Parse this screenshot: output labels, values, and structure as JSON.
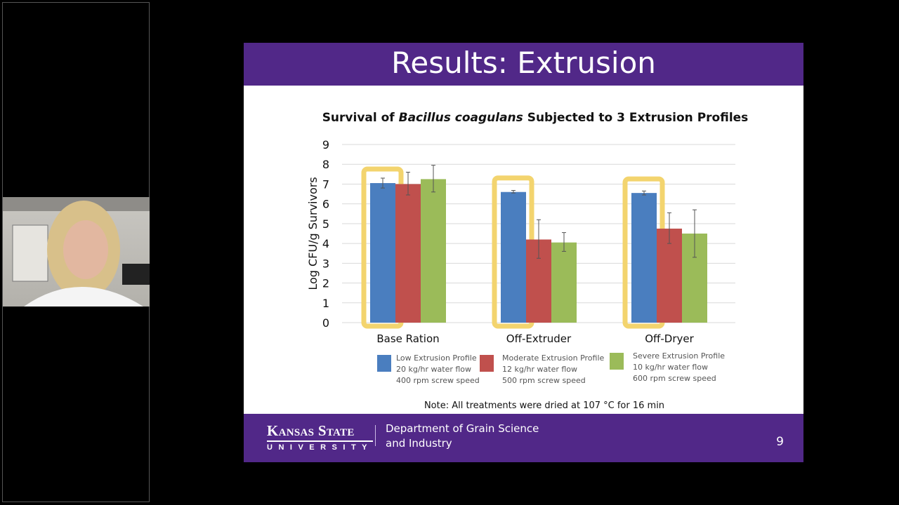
{
  "slide": {
    "title": "Results: Extrusion",
    "footer": {
      "logo_line1": "Kansas State",
      "logo_line2": "UNIVERSITY",
      "department_line1": "Department of Grain Science",
      "department_line2": "and Industry",
      "page_number": "9"
    }
  },
  "chart_data": {
    "type": "bar",
    "title_parts": [
      "Survival of ",
      "Bacillus coagulans",
      " Subjected to 3 Extrusion Profiles"
    ],
    "ylabel": "Log CFU/g Survivors",
    "xlabel": "",
    "ylim": [
      0,
      9
    ],
    "yticks": [
      "0",
      "1",
      "2",
      "3",
      "4",
      "5",
      "6",
      "7",
      "8",
      "9"
    ],
    "grid": true,
    "categories": [
      "Base Ration",
      "Off-Extruder",
      "Off-Dryer"
    ],
    "series": [
      {
        "name": "Low Extrusion Profile",
        "detail1": "20 kg/hr water flow",
        "detail2": "400 rpm screw speed",
        "color": "#4a7ebf",
        "values": [
          7.05,
          6.6,
          6.55
        ],
        "err_low": [
          6.8,
          6.55,
          6.45
        ],
        "err_high": [
          7.3,
          6.68,
          6.65
        ]
      },
      {
        "name": "Moderate Extrusion Profile",
        "detail1": "12 kg/hr water flow",
        "detail2": "500 rpm screw speed",
        "color": "#c0504d",
        "values": [
          7.0,
          4.2,
          4.75
        ],
        "err_low": [
          6.45,
          3.25,
          4.0
        ],
        "err_high": [
          7.6,
          5.2,
          5.55
        ]
      },
      {
        "name": "Severe Extrusion Profile",
        "detail1": "10 kg/hr water flow",
        "detail2": "600 rpm screw speed",
        "color": "#9bbb59",
        "values": [
          7.25,
          4.05,
          4.5
        ],
        "err_low": [
          6.6,
          3.6,
          3.3
        ],
        "err_high": [
          7.95,
          4.55,
          5.7
        ]
      }
    ],
    "highlighted_series": "Low Extrusion Profile",
    "highlight_color": "#f3d46e",
    "legend_placement": "bottom",
    "note": "Note: All treatments were dried at 107 °C for 16 min"
  }
}
